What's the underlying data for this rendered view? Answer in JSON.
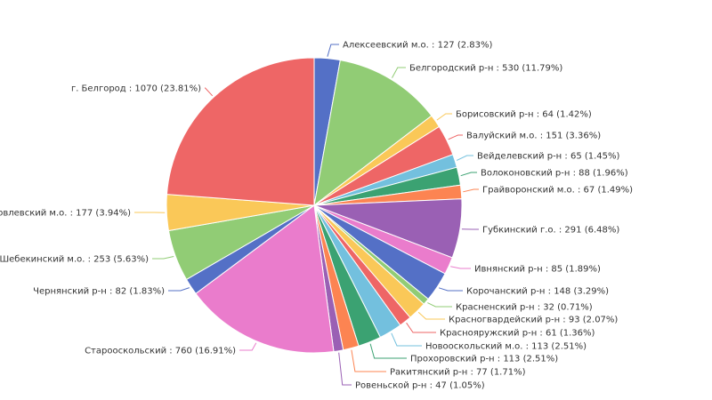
{
  "chart_data": {
    "type": "pie",
    "title": "",
    "label_format": "{name} : {value} ({percent})",
    "slices": [
      {
        "name": "Алексеевский м.о.",
        "value": 127,
        "percent": "2.83%",
        "color": "#5470c6"
      },
      {
        "name": "Белгородский р-н",
        "value": 530,
        "percent": "11.79%",
        "color": "#91cc75"
      },
      {
        "name": "Борисовский р-н",
        "value": 64,
        "percent": "1.42%",
        "color": "#fac858"
      },
      {
        "name": "Валуйский м.о.",
        "value": 151,
        "percent": "3.36%",
        "color": "#ee6666"
      },
      {
        "name": "Вейделевский р-н",
        "value": 65,
        "percent": "1.45%",
        "color": "#73c0de"
      },
      {
        "name": "Волоконовский р-н",
        "value": 88,
        "percent": "1.96%",
        "color": "#3ba272"
      },
      {
        "name": "Грайворонский м.о.",
        "value": 67,
        "percent": "1.49%",
        "color": "#fc8452"
      },
      {
        "name": "Губкинский г.о.",
        "value": 291,
        "percent": "6.48%",
        "color": "#9a60b4"
      },
      {
        "name": "Ивнянский р-н",
        "value": 85,
        "percent": "1.89%",
        "color": "#ea7ccc"
      },
      {
        "name": "Корочанский р-н",
        "value": 148,
        "percent": "3.29%",
        "color": "#5470c6"
      },
      {
        "name": "Красненский р-н",
        "value": 32,
        "percent": "0.71%",
        "color": "#91cc75"
      },
      {
        "name": "Красногвардейский р-н",
        "value": 93,
        "percent": "2.07%",
        "color": "#fac858"
      },
      {
        "name": "Краснояружский р-н",
        "value": 61,
        "percent": "1.36%",
        "color": "#ee6666"
      },
      {
        "name": "Новооскольский м.о.",
        "value": 113,
        "percent": "2.51%",
        "color": "#73c0de"
      },
      {
        "name": "Прохоровский р-н",
        "value": 113,
        "percent": "2.51%",
        "color": "#3ba272"
      },
      {
        "name": "Ракитянский р-н",
        "value": 77,
        "percent": "1.71%",
        "color": "#fc8452"
      },
      {
        "name": "Ровеньской р-н",
        "value": 47,
        "percent": "1.05%",
        "color": "#9a60b4"
      },
      {
        "name": "Старооскольский",
        "value": 760,
        "percent": "16.91%",
        "color": "#ea7ccc"
      },
      {
        "name": "Чернянский р-н",
        "value": 82,
        "percent": "1.83%",
        "color": "#5470c6"
      },
      {
        "name": "Шебекинский м.о.",
        "value": 253,
        "percent": "5.63%",
        "color": "#91cc75"
      },
      {
        "name": "Яковлевский м.о.",
        "value": 177,
        "percent": "3.94%",
        "color": "#fac858"
      },
      {
        "name": "г. Белгород",
        "value": 1070,
        "percent": "23.81%",
        "color": "#ee6666"
      }
    ],
    "start_angle": "12 o'clock",
    "direction": "clockwise",
    "legend": "none"
  }
}
